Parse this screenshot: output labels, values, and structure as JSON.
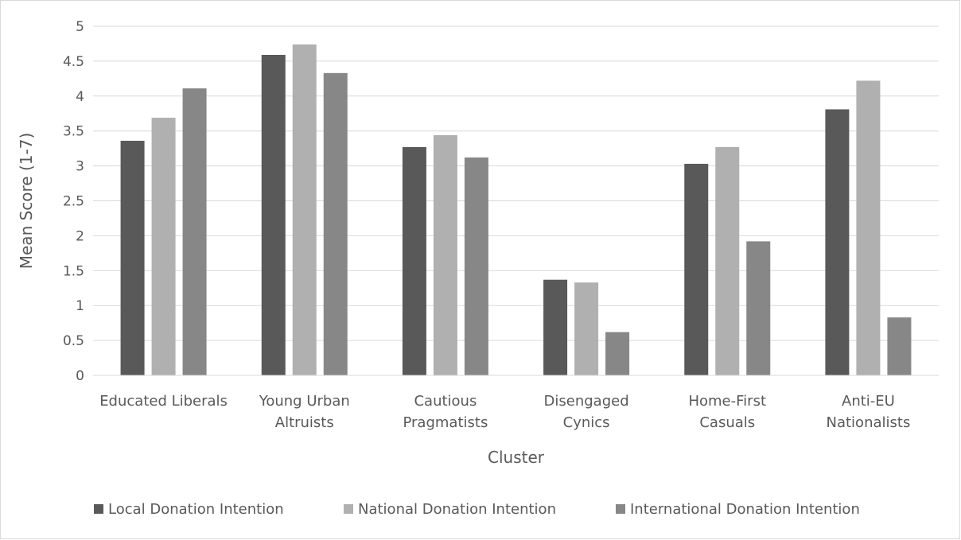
{
  "chart_data": {
    "type": "bar",
    "title": "",
    "xlabel": "Cluster",
    "ylabel": "Mean Score (1-7)",
    "ylim": [
      0,
      5
    ],
    "yticks": [
      "0",
      "0.5",
      "1",
      "1.5",
      "2",
      "2.5",
      "3",
      "3.5",
      "4",
      "4.5",
      "5"
    ],
    "grid": true,
    "legend_position": "bottom",
    "categories": [
      [
        "Educated Liberals"
      ],
      [
        "Young Urban",
        "Altruists"
      ],
      [
        "Cautious",
        "Pragmatists"
      ],
      [
        "Disengaged",
        "Cynics"
      ],
      [
        "Home-First",
        "Casuals"
      ],
      [
        "Anti-EU",
        "Nationalists"
      ]
    ],
    "series": [
      {
        "name": "Local Donation Intention",
        "color": "#595959",
        "values": [
          3.36,
          4.59,
          3.27,
          1.37,
          3.03,
          3.81
        ]
      },
      {
        "name": "National Donation Intention",
        "color": "#b0b0b0",
        "values": [
          3.69,
          4.74,
          3.44,
          1.33,
          3.27,
          4.22
        ]
      },
      {
        "name": "International Donation Intention",
        "color": "#878787",
        "values": [
          4.11,
          4.33,
          3.12,
          0.62,
          1.92,
          0.83
        ]
      }
    ]
  }
}
